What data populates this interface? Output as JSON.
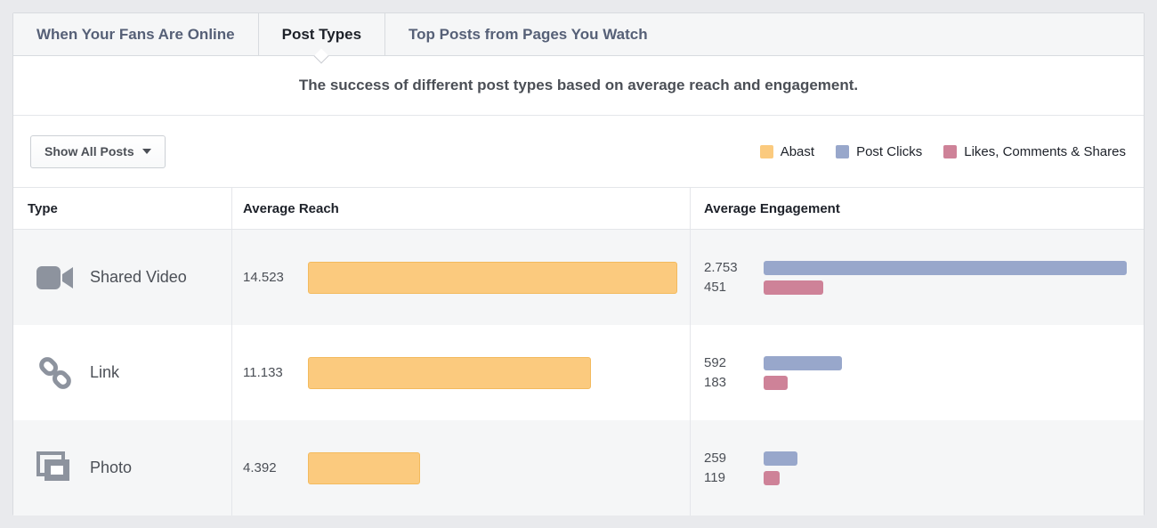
{
  "tabs": [
    {
      "label": "When Your Fans Are Online",
      "active": false
    },
    {
      "label": "Post Types",
      "active": true
    },
    {
      "label": "Top Posts from Pages You Watch",
      "active": false
    }
  ],
  "subtitle": "The success of different post types based on average reach and engagement.",
  "filter_button": {
    "label": "Show All Posts"
  },
  "legend": [
    {
      "label": "Abast",
      "color": "#fbca7e"
    },
    {
      "label": "Post Clicks",
      "color": "#98a7cb"
    },
    {
      "label": "Likes, Comments & Shares",
      "color": "#ce8298"
    }
  ],
  "table": {
    "headers": {
      "type": "Type",
      "reach": "Average Reach",
      "engagement": "Average Engagement"
    },
    "reach_max": 14523,
    "engagement_max": 2753,
    "rows": [
      {
        "type": "Shared Video",
        "icon": "video-icon",
        "reach": {
          "label": "14.523",
          "value": 14523
        },
        "clicks": {
          "label": "2.753",
          "value": 2753
        },
        "likes": {
          "label": "451",
          "value": 451
        }
      },
      {
        "type": "Link",
        "icon": "link-icon",
        "reach": {
          "label": "11.133",
          "value": 11133
        },
        "clicks": {
          "label": "592",
          "value": 592
        },
        "likes": {
          "label": "183",
          "value": 183
        }
      },
      {
        "type": "Photo",
        "icon": "photo-icon",
        "reach": {
          "label": "4.392",
          "value": 4392
        },
        "clicks": {
          "label": "259",
          "value": 259
        },
        "likes": {
          "label": "119",
          "value": 119
        }
      }
    ]
  },
  "chart_data": {
    "type": "bar",
    "orientation": "horizontal",
    "categories": [
      "Shared Video",
      "Link",
      "Photo"
    ],
    "series": [
      {
        "name": "Abast",
        "color": "#fbca7e",
        "values": [
          14523,
          11133,
          4392
        ]
      },
      {
        "name": "Post Clicks",
        "color": "#98a7cb",
        "values": [
          2753,
          592,
          259
        ]
      },
      {
        "name": "Likes, Comments & Shares",
        "color": "#ce8298",
        "values": [
          451,
          183,
          119
        ]
      }
    ],
    "title": "The success of different post types based on average reach and engagement.",
    "xlabel": "",
    "ylabel": "",
    "legend_position": "top-right",
    "grid": false
  },
  "colors": {
    "reach_bar": "#fbca7e",
    "clicks_bar": "#98a7cb",
    "likes_bar": "#ce8298",
    "page_bg": "#e9eaed"
  }
}
